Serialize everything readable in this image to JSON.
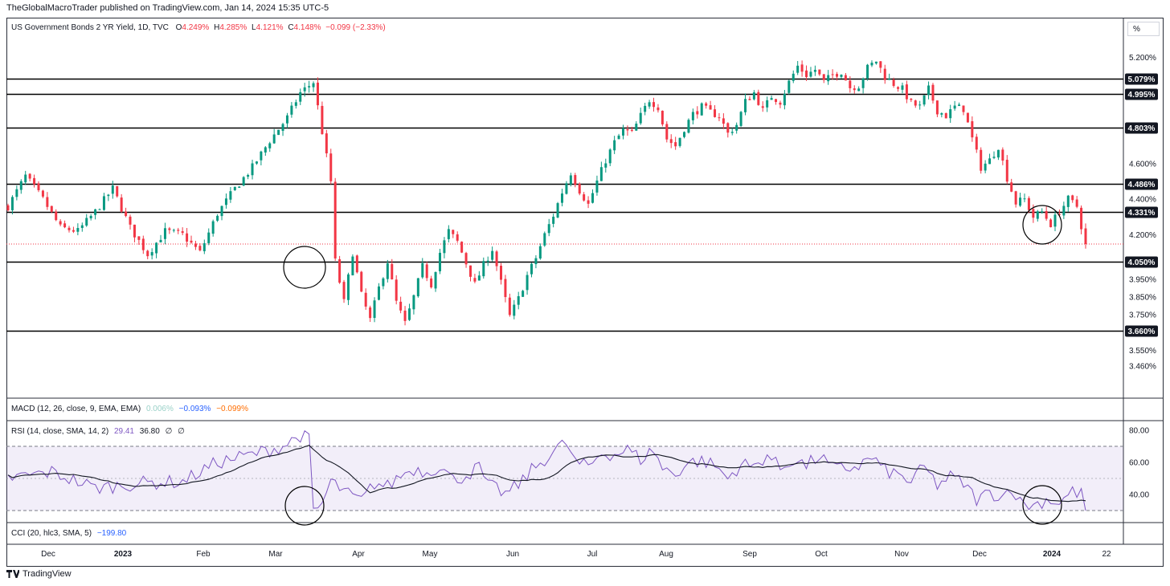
{
  "publisher_line": "TheGlobalMacroTrader published on TradingView.com, Jan 14, 2024 15:35 UTC-5",
  "symbol": "US Government Bonds 2 YR Yield, 1D, TVC",
  "ohlc": {
    "o_label": "O",
    "o": "4.249%",
    "h_label": "H",
    "h": "4.285%",
    "l_label": "L",
    "l": "4.121%",
    "c_label": "C",
    "c": "4.148%",
    "change": "−0.099 (−2.33%)"
  },
  "scale_button": "%",
  "macd": {
    "label": "MACD (12, 26, close, 9, EMA, EMA)",
    "v1": "0.006%",
    "v2": "−0.093%",
    "v3": "−0.099%"
  },
  "rsi": {
    "label": "RSI (14, close, SMA, 14, 2)",
    "v1": "29.41",
    "v2": "36.80",
    "v3": "∅",
    "v4": "∅"
  },
  "cci": {
    "label": "CCI (20, hlc3, SMA, 5)",
    "v1": "−199.80"
  },
  "footer": "TradingView",
  "chart_data": [
    {
      "type": "candlestick",
      "ylim": [
        3.46,
        5.28
      ],
      "price_ticks": [
        "5.200%",
        "4.600%",
        "4.400%",
        "4.200%",
        "3.950%",
        "3.850%",
        "3.750%",
        "3.550%",
        "3.460%"
      ],
      "price_tick_values": [
        5.2,
        4.6,
        4.4,
        4.2,
        3.95,
        3.85,
        3.75,
        3.55,
        3.46
      ],
      "level_labels": [
        "5.079%",
        "4.995%",
        "4.803%",
        "4.486%",
        "4.331%",
        "4.050%",
        "3.660%"
      ],
      "level_values": [
        5.079,
        4.995,
        4.803,
        4.486,
        4.331,
        4.05,
        3.66
      ],
      "last_close": 4.148,
      "x_labels": [
        "Dec",
        "2023",
        "Feb",
        "Mar",
        "Apr",
        "May",
        "Jun",
        "Jul",
        "Aug",
        "Sep",
        "Oct",
        "Nov",
        "Dec",
        "2024",
        "22"
      ],
      "anchors": [
        [
          0,
          4.36
        ],
        [
          4,
          4.53
        ],
        [
          8,
          4.4
        ],
        [
          12,
          4.24
        ],
        [
          16,
          4.22
        ],
        [
          20,
          4.33
        ],
        [
          24,
          4.46
        ],
        [
          28,
          4.24
        ],
        [
          32,
          4.09
        ],
        [
          36,
          4.22
        ],
        [
          40,
          4.2
        ],
        [
          44,
          4.1
        ],
        [
          48,
          4.32
        ],
        [
          52,
          4.46
        ],
        [
          56,
          4.58
        ],
        [
          60,
          4.73
        ],
        [
          64,
          4.86
        ],
        [
          67,
          5.0
        ],
        [
          70,
          5.06
        ],
        [
          72,
          4.78
        ],
        [
          74,
          4.5
        ],
        [
          75,
          4.05
        ],
        [
          77,
          3.82
        ],
        [
          79,
          4.1
        ],
        [
          81,
          3.86
        ],
        [
          83,
          3.72
        ],
        [
          85,
          3.9
        ],
        [
          87,
          4.05
        ],
        [
          89,
          3.82
        ],
        [
          91,
          3.7
        ],
        [
          93,
          3.85
        ],
        [
          95,
          4.02
        ],
        [
          97,
          3.92
        ],
        [
          99,
          4.1
        ],
        [
          101,
          4.22
        ],
        [
          103,
          4.16
        ],
        [
          105,
          4.04
        ],
        [
          107,
          3.92
        ],
        [
          109,
          4.03
        ],
        [
          111,
          4.12
        ],
        [
          113,
          3.93
        ],
        [
          115,
          3.74
        ],
        [
          117,
          3.84
        ],
        [
          119,
          3.97
        ],
        [
          121,
          4.07
        ],
        [
          123,
          4.2
        ],
        [
          125,
          4.31
        ],
        [
          127,
          4.44
        ],
        [
          129,
          4.55
        ],
        [
          131,
          4.45
        ],
        [
          133,
          4.37
        ],
        [
          135,
          4.5
        ],
        [
          137,
          4.62
        ],
        [
          139,
          4.72
        ],
        [
          141,
          4.79
        ],
        [
          143,
          4.77
        ],
        [
          145,
          4.87
        ],
        [
          147,
          4.96
        ],
        [
          149,
          4.92
        ],
        [
          151,
          4.74
        ],
        [
          153,
          4.7
        ],
        [
          155,
          4.8
        ],
        [
          157,
          4.88
        ],
        [
          159,
          4.92
        ],
        [
          161,
          4.89
        ],
        [
          163,
          4.87
        ],
        [
          165,
          4.77
        ],
        [
          167,
          4.82
        ],
        [
          169,
          4.95
        ],
        [
          171,
          5.0
        ],
        [
          173,
          4.9
        ],
        [
          175,
          4.98
        ],
        [
          177,
          4.95
        ],
        [
          179,
          5.06
        ],
        [
          181,
          5.15
        ],
        [
          183,
          5.1
        ],
        [
          185,
          5.13
        ],
        [
          187,
          5.06
        ],
        [
          189,
          5.1
        ],
        [
          191,
          5.12
        ],
        [
          193,
          5.03
        ],
        [
          195,
          5.04
        ],
        [
          197,
          5.14
        ],
        [
          199,
          5.18
        ],
        [
          201,
          5.09
        ],
        [
          203,
          5.05
        ],
        [
          205,
          5.02
        ],
        [
          207,
          4.94
        ],
        [
          209,
          4.92
        ],
        [
          211,
          5.02
        ],
        [
          213,
          4.9
        ],
        [
          215,
          4.87
        ],
        [
          217,
          4.92
        ],
        [
          219,
          4.91
        ],
        [
          221,
          4.74
        ],
        [
          223,
          4.58
        ],
        [
          225,
          4.62
        ],
        [
          227,
          4.7
        ],
        [
          229,
          4.52
        ],
        [
          231,
          4.38
        ],
        [
          233,
          4.4
        ],
        [
          235,
          4.3
        ],
        [
          237,
          4.33
        ],
        [
          239,
          4.26
        ],
        [
          241,
          4.33
        ],
        [
          243,
          4.4
        ],
        [
          245,
          4.36
        ],
        [
          246,
          4.25
        ],
        [
          247,
          4.15
        ]
      ],
      "volatility": 0.028
    },
    {
      "type": "line",
      "name": "RSI",
      "ylim": [
        20,
        85
      ],
      "ticks": [
        "80.00",
        "60.00",
        "40.00"
      ],
      "tick_values": [
        80,
        60,
        40
      ],
      "band": [
        30,
        70
      ],
      "midline": 50,
      "anchors": [
        [
          0,
          50
        ],
        [
          10,
          54
        ],
        [
          20,
          44
        ],
        [
          30,
          47
        ],
        [
          40,
          48
        ],
        [
          48,
          60
        ],
        [
          56,
          65
        ],
        [
          63,
          70
        ],
        [
          67,
          77
        ],
        [
          69,
          74
        ],
        [
          70,
          29
        ],
        [
          72,
          34
        ],
        [
          74,
          48
        ],
        [
          76,
          44
        ],
        [
          78,
          40
        ],
        [
          81,
          36
        ],
        [
          84,
          47
        ],
        [
          87,
          45
        ],
        [
          90,
          52
        ],
        [
          93,
          56
        ],
        [
          96,
          54
        ],
        [
          99,
          58
        ],
        [
          102,
          49
        ],
        [
          105,
          52
        ],
        [
          108,
          57
        ],
        [
          110,
          45
        ],
        [
          112,
          44
        ],
        [
          114,
          40
        ],
        [
          117,
          46
        ],
        [
          120,
          55
        ],
        [
          123,
          62
        ],
        [
          126,
          69
        ],
        [
          128,
          72
        ],
        [
          130,
          60
        ],
        [
          133,
          57
        ],
        [
          136,
          66
        ],
        [
          139,
          65
        ],
        [
          142,
          68
        ],
        [
          145,
          62
        ],
        [
          148,
          68
        ],
        [
          150,
          56
        ],
        [
          153,
          53
        ],
        [
          156,
          60
        ],
        [
          159,
          61
        ],
        [
          162,
          58
        ],
        [
          165,
          50
        ],
        [
          168,
          59
        ],
        [
          171,
          57
        ],
        [
          174,
          65
        ],
        [
          177,
          56
        ],
        [
          180,
          62
        ],
        [
          183,
          58
        ],
        [
          186,
          64
        ],
        [
          189,
          56
        ],
        [
          192,
          56
        ],
        [
          195,
          58
        ],
        [
          198,
          63
        ],
        [
          201,
          55
        ],
        [
          204,
          52
        ],
        [
          207,
          48
        ],
        [
          210,
          57
        ],
        [
          213,
          46
        ],
        [
          216,
          51
        ],
        [
          219,
          47
        ],
        [
          222,
          37
        ],
        [
          225,
          41
        ],
        [
          228,
          39
        ],
        [
          230,
          45
        ],
        [
          232,
          35
        ],
        [
          235,
          33
        ],
        [
          238,
          37
        ],
        [
          241,
          35
        ],
        [
          244,
          42
        ],
        [
          246,
          40
        ],
        [
          247,
          30
        ]
      ],
      "noise": 4.5
    }
  ]
}
